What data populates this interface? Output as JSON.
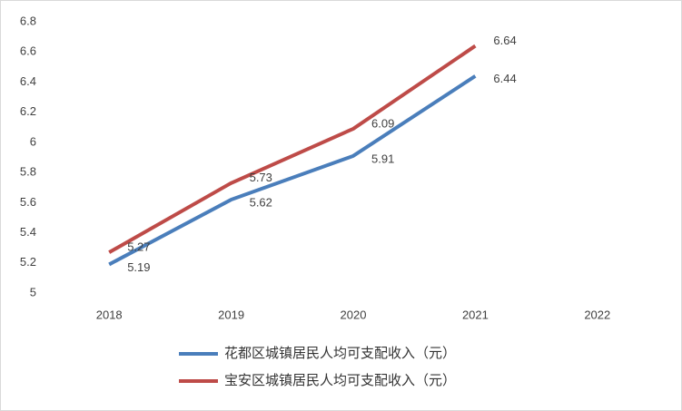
{
  "chart_data": {
    "type": "line",
    "categories": [
      "2018",
      "2019",
      "2020",
      "2021",
      "2022"
    ],
    "series": [
      {
        "name": "花都区城镇居民人均可支配收入（元）",
        "color": "#4a7ebb",
        "values": [
          5.19,
          5.62,
          5.91,
          6.44,
          null
        ]
      },
      {
        "name": "宝安区城镇居民人均可支配收入（元）",
        "color": "#be4b48",
        "values": [
          5.27,
          5.73,
          6.09,
          6.64,
          null
        ]
      }
    ],
    "ylim": [
      5,
      6.8
    ],
    "yticks": [
      5,
      5.2,
      5.4,
      5.6,
      5.8,
      6,
      6.2,
      6.4,
      6.6,
      6.8
    ],
    "grid": false,
    "legend": "bottom"
  }
}
